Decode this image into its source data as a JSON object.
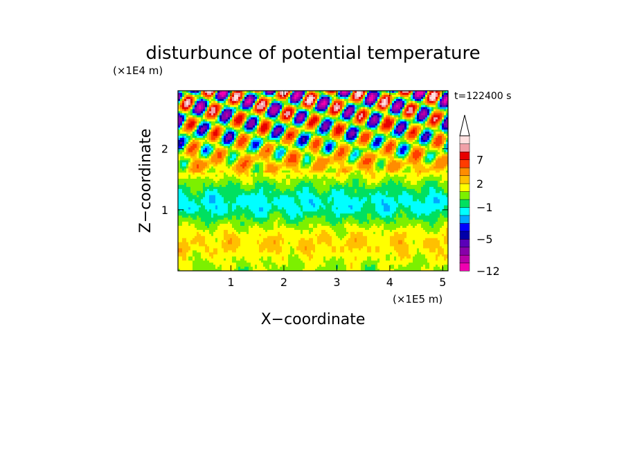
{
  "chart_data": {
    "type": "heatmap",
    "title": "disturbunce of potential temperature",
    "time_label": "t=122400 s",
    "xlabel": "X−coordinate",
    "ylabel": "Z−coordinate",
    "x_unit": "(×1E5 m)",
    "y_unit": "(×1E4 m)",
    "xlim": [
      0,
      5.1
    ],
    "ylim": [
      0,
      2.95
    ],
    "x_ticks": [
      1,
      2,
      3,
      4,
      5
    ],
    "x_tick_labels": [
      "1",
      "2",
      "3",
      "4",
      "5"
    ],
    "y_ticks": [
      1,
      2
    ],
    "y_tick_labels": [
      "1",
      "2"
    ],
    "colorbar": {
      "levels": [
        -12,
        -10,
        -8,
        -6,
        -5,
        -4,
        -3,
        -2,
        -1,
        0,
        1,
        2,
        3,
        5,
        7,
        9,
        11
      ],
      "tick_values": [
        -12,
        -5,
        -1,
        2,
        7
      ],
      "tick_labels": [
        "−12",
        "−5",
        "−1",
        "2",
        "7"
      ],
      "colors": [
        "#f000b0",
        "#b800a8",
        "#8800aa",
        "#5a00b8",
        "#0000a8",
        "#0000ff",
        "#00a8ff",
        "#00ffff",
        "#00e060",
        "#7cf000",
        "#ffff00",
        "#ffc000",
        "#ff8c00",
        "#ff3c00",
        "#e80000",
        "#f0a0a8",
        "#ffe0e0"
      ],
      "extend_max": true
    }
  }
}
